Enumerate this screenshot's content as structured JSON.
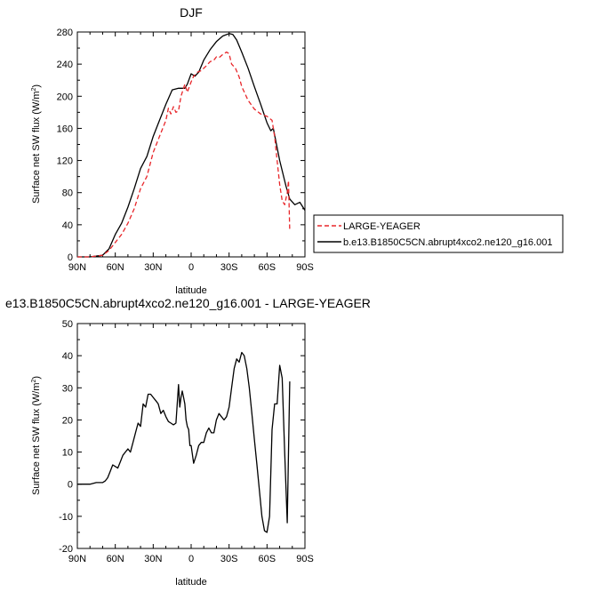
{
  "chart_data": [
    {
      "type": "line",
      "title": "DJF",
      "xlabel": "latitude",
      "ylabel": "Surface net SW flux (W/m",
      "ylabel_sup": "2",
      "ylabel_close": ")",
      "xlim": [
        90,
        -90
      ],
      "ylim": [
        0,
        280
      ],
      "x_tick_values": [
        90,
        60,
        30,
        0,
        -30,
        -60,
        -90
      ],
      "x_tick_labels": [
        "90N",
        "60N",
        "30N",
        "0",
        "30S",
        "60S",
        "90S"
      ],
      "y_tick_values": [
        0,
        40,
        80,
        120,
        160,
        200,
        240,
        280
      ],
      "y_tick_labels": [
        "0",
        "40",
        "80",
        "120",
        "160",
        "200",
        "240",
        "280"
      ],
      "legend_position": "right",
      "series": [
        {
          "name": "LARGE-YEAGER",
          "color": "#e8262a",
          "dash": "dashed",
          "x": [
            90,
            80,
            70,
            65,
            60,
            55,
            50,
            45,
            40,
            35,
            30,
            25,
            20,
            18,
            16,
            14,
            12,
            10,
            8,
            5,
            3,
            0,
            -2,
            -5,
            -8,
            -12,
            -15,
            -18,
            -20,
            -22,
            -25,
            -28,
            -30,
            -32,
            -35,
            -38,
            -40,
            -45,
            -50,
            -55,
            -60,
            -64,
            -66,
            -68,
            -70,
            -72,
            -74,
            -76,
            -77,
            -78
          ],
          "y": [
            0,
            0,
            2,
            8,
            18,
            28,
            42,
            60,
            85,
            100,
            130,
            150,
            170,
            185,
            178,
            187,
            180,
            182,
            200,
            215,
            205,
            218,
            225,
            230,
            232,
            238,
            243,
            245,
            249,
            248,
            252,
            255,
            253,
            240,
            235,
            224,
            212,
            195,
            184,
            178,
            175,
            170,
            150,
            120,
            90,
            70,
            65,
            80,
            95,
            32
          ]
        },
        {
          "name": "b.e13.B1850C5CN.abrupt4xco2.ne120_g16.001",
          "color": "#000000",
          "dash": "solid",
          "x": [
            90,
            80,
            70,
            65,
            60,
            55,
            50,
            45,
            40,
            35,
            30,
            25,
            20,
            15,
            10,
            5,
            3,
            0,
            -3,
            -6,
            -10,
            -15,
            -20,
            -25,
            -30,
            -33,
            -36,
            -40,
            -45,
            -50,
            -55,
            -60,
            -63,
            -65,
            -70,
            -75,
            -78,
            -82,
            -86,
            -90
          ],
          "y": [
            0,
            0,
            2,
            10,
            28,
            42,
            62,
            85,
            110,
            125,
            150,
            170,
            190,
            208,
            210,
            210,
            215,
            228,
            225,
            230,
            245,
            258,
            268,
            275,
            278,
            277,
            270,
            255,
            235,
            212,
            190,
            167,
            157,
            160,
            120,
            88,
            72,
            65,
            68,
            58
          ]
        }
      ]
    },
    {
      "type": "line",
      "title": "e13.B1850C5CN.abrupt4xco2.ne120_g16.001 - LARGE-YEAGER",
      "xlabel": "latitude",
      "ylabel": "Surface net SW flux (W/m",
      "ylabel_sup": "2",
      "ylabel_close": ")",
      "xlim": [
        90,
        -90
      ],
      "ylim": [
        -20,
        50
      ],
      "x_tick_values": [
        90,
        60,
        30,
        0,
        -30,
        -60,
        -90
      ],
      "x_tick_labels": [
        "90N",
        "60N",
        "30N",
        "0",
        "30S",
        "60S",
        "90S"
      ],
      "y_tick_values": [
        -20,
        -10,
        0,
        10,
        20,
        30,
        40,
        50
      ],
      "y_tick_labels": [
        "-20",
        "-10",
        "0",
        "10",
        "20",
        "30",
        "40",
        "50"
      ],
      "series": [
        {
          "color": "#000000",
          "x": [
            90,
            85,
            80,
            75,
            70,
            68,
            66,
            64,
            62,
            60,
            58,
            56,
            54,
            52,
            50,
            48,
            46,
            44,
            42,
            40,
            38,
            36,
            34,
            32,
            30,
            28,
            26,
            24,
            22,
            20,
            18,
            16,
            14,
            12,
            10,
            9,
            8,
            7,
            6,
            5,
            4,
            3,
            2,
            1,
            0,
            -2,
            -4,
            -6,
            -8,
            -10,
            -12,
            -14,
            -16,
            -18,
            -20,
            -22,
            -24,
            -26,
            -28,
            -30,
            -32,
            -34,
            -36,
            -38,
            -40,
            -42,
            -44,
            -46,
            -48,
            -50,
            -52,
            -54,
            -56,
            -58,
            -60,
            -62,
            -64,
            -66,
            -68,
            -70,
            -72,
            -74,
            -76,
            -78
          ],
          "y": [
            0,
            0,
            0,
            0.5,
            0.5,
            1,
            2,
            4,
            6,
            5.5,
            5,
            7,
            9,
            10,
            11,
            10,
            13,
            16,
            19,
            18,
            25,
            24,
            28,
            28,
            27,
            26,
            25,
            22,
            23,
            21,
            19.5,
            19,
            18.5,
            19,
            31,
            24,
            27,
            29,
            27,
            25,
            20,
            18,
            17,
            12,
            12,
            6.5,
            9,
            12,
            13,
            13,
            16,
            17.5,
            16,
            16,
            20,
            22,
            21,
            20,
            21,
            24,
            30,
            36,
            39,
            38,
            41,
            40,
            36,
            30,
            22,
            14,
            6,
            -2,
            -10,
            -14.5,
            -15,
            -10,
            17,
            25,
            25,
            37,
            33,
            10,
            -12,
            32
          ]
        }
      ]
    }
  ]
}
